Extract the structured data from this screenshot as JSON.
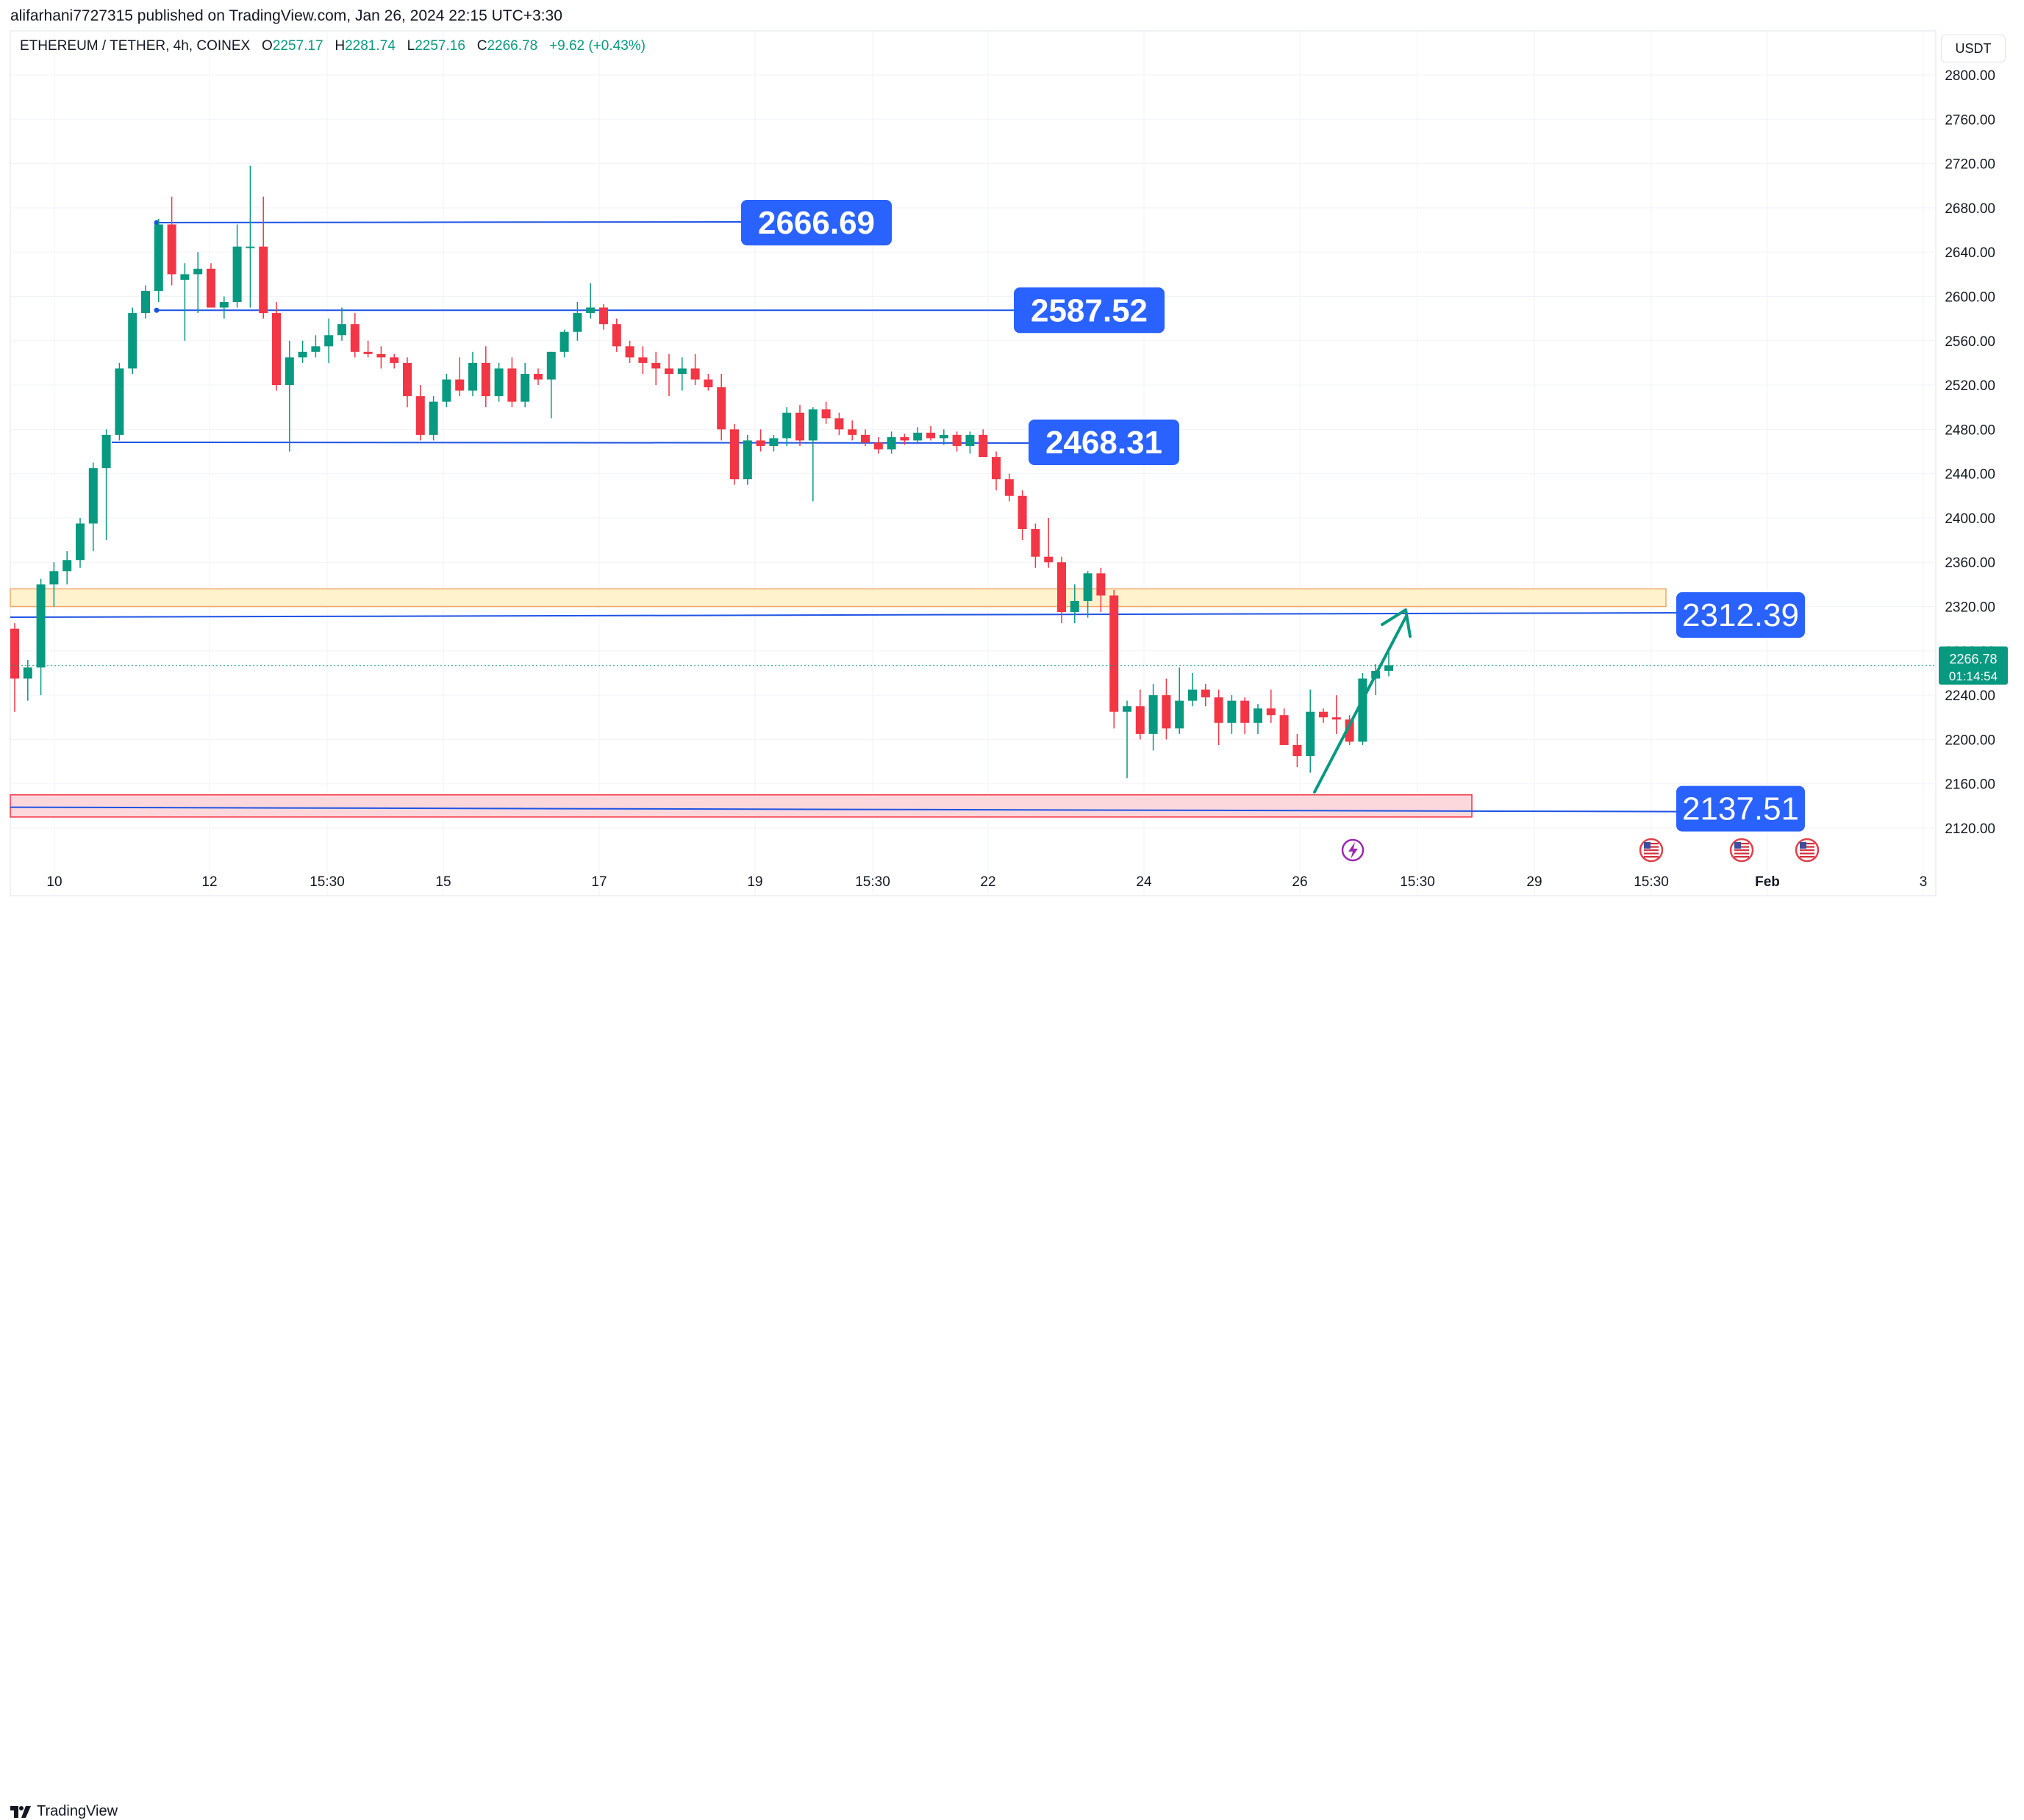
{
  "header": {
    "publish_text": "alifarhani7727315 published on TradingView.com, Jan 26, 2024 22:15 UTC+3:30"
  },
  "symbol": {
    "name": "ETHEREUM / TETHER, 4h, COINEX",
    "o_label": "O",
    "o": "2257.17",
    "h_label": "H",
    "h": "2281.74",
    "l_label": "L",
    "l": "2257.16",
    "c_label": "C",
    "c": "2266.78",
    "change": "+9.62 (+0.43%)"
  },
  "currency": "USDT",
  "footer": {
    "brand": "TradingView"
  },
  "colors": {
    "up": "#089981",
    "down": "#f23645",
    "level": "#1e53e5",
    "label_bg": "#2962ff",
    "supply_zone": "#fff2cc",
    "supply_border": "#f0a868",
    "demand_zone": "#fcd8dc",
    "demand_border": "#f23645",
    "arrow": "#089981",
    "grid": "#f0f3fa",
    "axis_text": "#131722"
  },
  "chart_data": {
    "type": "candlestick",
    "interval": "4h",
    "ylim": [
      2100,
      2820
    ],
    "y_ticks": [
      "2800.00",
      "2760.00",
      "2720.00",
      "2680.00",
      "2640.00",
      "2600.00",
      "2560.00",
      "2520.00",
      "2480.00",
      "2440.00",
      "2400.00",
      "2360.00",
      "2320.00",
      "2280.00",
      "2240.00",
      "2200.00",
      "2160.00",
      "2120.00"
    ],
    "x_ticks": [
      "10",
      "12",
      "15:30",
      "15",
      "17",
      "19",
      "15:30",
      "22",
      "24",
      "26",
      "15:30",
      "29",
      "15:30",
      "Feb",
      "3"
    ],
    "last_price": "2266.78",
    "countdown": "01:14:54",
    "candles": [
      [
        2300,
        2305,
        2225,
        2255
      ],
      [
        2255,
        2272,
        2235,
        2265
      ],
      [
        2265,
        2345,
        2240,
        2340
      ],
      [
        2340,
        2360,
        2320,
        2352
      ],
      [
        2352,
        2370,
        2340,
        2362
      ],
      [
        2362,
        2400,
        2355,
        2395
      ],
      [
        2395,
        2450,
        2370,
        2445
      ],
      [
        2445,
        2480,
        2380,
        2475
      ],
      [
        2475,
        2540,
        2470,
        2535
      ],
      [
        2535,
        2590,
        2530,
        2585
      ],
      [
        2585,
        2610,
        2580,
        2605
      ],
      [
        2605,
        2670,
        2595,
        2665
      ],
      [
        2665,
        2690,
        2610,
        2620
      ],
      [
        2615,
        2630,
        2560,
        2620
      ],
      [
        2620,
        2640,
        2585,
        2625
      ],
      [
        2625,
        2630,
        2595,
        2590
      ],
      [
        2590,
        2600,
        2580,
        2595
      ],
      [
        2595,
        2665,
        2590,
        2645
      ],
      [
        2645,
        2718,
        2590,
        2645
      ],
      [
        2645,
        2690,
        2580,
        2585
      ],
      [
        2585,
        2595,
        2515,
        2520
      ],
      [
        2520,
        2560,
        2460,
        2545
      ],
      [
        2545,
        2560,
        2540,
        2550
      ],
      [
        2550,
        2565,
        2545,
        2555
      ],
      [
        2555,
        2580,
        2540,
        2565
      ],
      [
        2565,
        2590,
        2560,
        2575
      ],
      [
        2575,
        2585,
        2545,
        2550
      ],
      [
        2550,
        2560,
        2545,
        2548
      ],
      [
        2548,
        2555,
        2535,
        2545
      ],
      [
        2545,
        2548,
        2535,
        2540
      ],
      [
        2540,
        2545,
        2500,
        2510
      ],
      [
        2510,
        2520,
        2470,
        2475
      ],
      [
        2475,
        2510,
        2470,
        2505
      ],
      [
        2505,
        2530,
        2500,
        2525
      ],
      [
        2525,
        2545,
        2510,
        2515
      ],
      [
        2515,
        2550,
        2510,
        2540
      ],
      [
        2540,
        2555,
        2500,
        2510
      ],
      [
        2510,
        2540,
        2505,
        2535
      ],
      [
        2535,
        2545,
        2500,
        2505
      ],
      [
        2505,
        2540,
        2500,
        2530
      ],
      [
        2530,
        2535,
        2520,
        2525
      ],
      [
        2525,
        2550,
        2490,
        2550
      ],
      [
        2550,
        2570,
        2545,
        2568
      ],
      [
        2568,
        2595,
        2560,
        2585
      ],
      [
        2585,
        2612,
        2580,
        2590
      ],
      [
        2590,
        2593,
        2570,
        2575
      ],
      [
        2575,
        2580,
        2550,
        2555
      ],
      [
        2555,
        2560,
        2540,
        2545
      ],
      [
        2545,
        2555,
        2530,
        2540
      ],
      [
        2540,
        2550,
        2520,
        2535
      ],
      [
        2535,
        2548,
        2510,
        2530
      ],
      [
        2530,
        2545,
        2515,
        2535
      ],
      [
        2535,
        2548,
        2520,
        2525
      ],
      [
        2525,
        2530,
        2515,
        2518
      ],
      [
        2518,
        2530,
        2470,
        2480
      ],
      [
        2480,
        2485,
        2430,
        2435
      ],
      [
        2435,
        2475,
        2430,
        2470
      ],
      [
        2470,
        2480,
        2460,
        2465
      ],
      [
        2465,
        2475,
        2460,
        2472
      ],
      [
        2472,
        2500,
        2465,
        2495
      ],
      [
        2495,
        2502,
        2465,
        2470
      ],
      [
        2470,
        2500,
        2415,
        2498
      ],
      [
        2498,
        2505,
        2485,
        2490
      ],
      [
        2490,
        2495,
        2475,
        2480
      ],
      [
        2480,
        2488,
        2470,
        2475
      ],
      [
        2475,
        2480,
        2465,
        2468
      ],
      [
        2468,
        2473,
        2458,
        2462
      ],
      [
        2462,
        2478,
        2458,
        2473
      ],
      [
        2473,
        2476,
        2466,
        2470
      ],
      [
        2470,
        2482,
        2468,
        2477
      ],
      [
        2477,
        2483,
        2470,
        2472
      ],
      [
        2472,
        2480,
        2466,
        2475
      ],
      [
        2475,
        2478,
        2460,
        2465
      ],
      [
        2465,
        2478,
        2458,
        2475
      ],
      [
        2475,
        2480,
        2455,
        2455
      ],
      [
        2455,
        2460,
        2425,
        2435
      ],
      [
        2435,
        2440,
        2415,
        2420
      ],
      [
        2420,
        2425,
        2380,
        2390
      ],
      [
        2390,
        2395,
        2355,
        2365
      ],
      [
        2365,
        2400,
        2355,
        2360
      ],
      [
        2360,
        2365,
        2305,
        2315
      ],
      [
        2315,
        2340,
        2305,
        2325
      ],
      [
        2325,
        2352,
        2310,
        2350
      ],
      [
        2350,
        2355,
        2315,
        2330
      ],
      [
        2330,
        2335,
        2210,
        2225
      ],
      [
        2225,
        2235,
        2165,
        2230
      ],
      [
        2230,
        2245,
        2200,
        2205
      ],
      [
        2205,
        2250,
        2190,
        2240
      ],
      [
        2240,
        2255,
        2200,
        2210
      ],
      [
        2210,
        2265,
        2205,
        2235
      ],
      [
        2235,
        2260,
        2230,
        2245
      ],
      [
        2245,
        2250,
        2230,
        2238
      ],
      [
        2238,
        2245,
        2195,
        2215
      ],
      [
        2215,
        2240,
        2205,
        2235
      ],
      [
        2235,
        2238,
        2205,
        2215
      ],
      [
        2215,
        2232,
        2205,
        2228
      ],
      [
        2228,
        2245,
        2215,
        2222
      ],
      [
        2222,
        2228,
        2200,
        2195
      ],
      [
        2195,
        2205,
        2175,
        2185
      ],
      [
        2185,
        2245,
        2170,
        2225
      ],
      [
        2225,
        2228,
        2215,
        2220
      ],
      [
        2220,
        2240,
        2205,
        2218
      ],
      [
        2218,
        2222,
        2195,
        2198
      ],
      [
        2198,
        2260,
        2195,
        2255
      ],
      [
        2255,
        2268,
        2240,
        2262
      ],
      [
        2262,
        2282,
        2257,
        2267
      ]
    ],
    "levels": [
      {
        "label": "2666.69",
        "value": 2666.69
      },
      {
        "label": "2587.52",
        "value": 2587.52
      },
      {
        "label": "2468.31",
        "value": 2468.31
      },
      {
        "label": "2312.39",
        "value": 2312.39
      },
      {
        "label": "2137.51",
        "value": 2137.51
      }
    ],
    "zones": [
      {
        "name": "supply-zone",
        "low": 2320,
        "high": 2336
      },
      {
        "name": "demand-zone",
        "low": 2130,
        "high": 2150
      }
    ]
  }
}
